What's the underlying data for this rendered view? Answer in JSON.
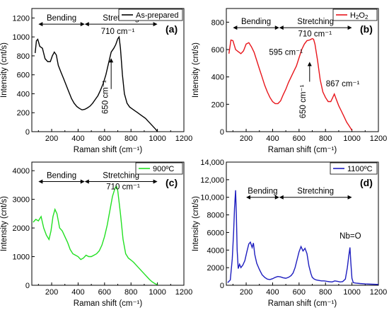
{
  "chart_data": [
    {
      "id": "a",
      "type": "line",
      "panel_label": "(a)",
      "legend": "As-prepared",
      "color": "#000000",
      "xlabel": "Raman shift (cm⁻¹)",
      "ylabel": "Intensity (cnt/s)",
      "xlim": [
        50,
        1200
      ],
      "ylim": [
        0,
        1300
      ],
      "xticks": [
        200,
        400,
        600,
        800,
        1000,
        1200
      ],
      "yticks": [
        0,
        200,
        400,
        600,
        800,
        1000,
        1200
      ],
      "ytick_labels": [
        "0",
        "200",
        "400",
        "600",
        "800",
        "1000",
        "1200"
      ],
      "bending": {
        "label": "Bending",
        "from": 100,
        "to": 450,
        "y": 1135
      },
      "stretching": {
        "label": "Stretching",
        "from": 450,
        "to": 1000,
        "y": 1135
      },
      "annotations": [
        {
          "text": "710 cm⁻¹",
          "x": 700,
          "y": 1030
        },
        {
          "text": "650 cm⁻¹",
          "x": 625,
          "y": 365,
          "rotate": true
        }
      ],
      "arrows": [
        {
          "x": 650,
          "y_from": 450,
          "y_to": 775
        }
      ],
      "x": [
        75,
        85,
        95,
        110,
        130,
        150,
        170,
        190,
        205,
        220,
        235,
        250,
        270,
        290,
        310,
        330,
        350,
        370,
        390,
        410,
        430,
        450,
        470,
        490,
        510,
        530,
        550,
        570,
        590,
        610,
        630,
        650,
        670,
        685,
        700,
        710,
        720,
        735,
        750,
        770,
        790,
        810,
        830,
        850,
        870,
        890,
        910,
        930,
        950,
        970,
        990,
        1000
      ],
      "y": [
        830,
        960,
        975,
        900,
        880,
        770,
        740,
        740,
        800,
        840,
        810,
        700,
        630,
        560,
        490,
        420,
        350,
        300,
        265,
        245,
        230,
        235,
        250,
        270,
        300,
        340,
        380,
        440,
        510,
        600,
        720,
        840,
        880,
        920,
        980,
        1000,
        880,
        600,
        400,
        300,
        260,
        240,
        220,
        200,
        180,
        160,
        140,
        110,
        80,
        50,
        20,
        0
      ]
    },
    {
      "id": "b",
      "type": "line",
      "panel_label": "(b)",
      "legend_main": "H",
      "legend_sub1": "2",
      "legend_mid": "O",
      "legend_sub2": "2",
      "color": "#e8151b",
      "xlabel": "Raman shift (cm⁻¹)",
      "ylabel": "Intensity (cnt/s)",
      "xlim": [
        50,
        1200
      ],
      "ylim": [
        0,
        900
      ],
      "xticks": [
        200,
        400,
        600,
        800,
        1000,
        1200
      ],
      "yticks": [
        0,
        200,
        400,
        600,
        800
      ],
      "ytick_labels": [
        "0",
        "200",
        "400",
        "600",
        "800"
      ],
      "bending": {
        "label": "Bending",
        "from": 100,
        "to": 450,
        "y": 760
      },
      "stretching": {
        "label": "Stretching",
        "from": 450,
        "to": 1000,
        "y": 760
      },
      "annotations": [
        {
          "text": "710 cm⁻¹",
          "x": 720,
          "y": 695
        },
        {
          "text": "595 cm⁻¹",
          "x": 500,
          "y": 560
        },
        {
          "text": "867 cm⁻¹",
          "x": 930,
          "y": 330
        },
        {
          "text": "650 cm⁻¹",
          "x": 648,
          "y": 220,
          "rotate": true
        }
      ],
      "arrows": [
        {
          "x": 680,
          "y_from": 365,
          "y_to": 510
        }
      ],
      "x": [
        70,
        85,
        100,
        120,
        140,
        160,
        180,
        200,
        220,
        240,
        260,
        280,
        300,
        320,
        340,
        360,
        380,
        400,
        420,
        440,
        460,
        480,
        500,
        520,
        540,
        560,
        580,
        600,
        620,
        640,
        660,
        680,
        700,
        710,
        720,
        740,
        760,
        780,
        800,
        820,
        840,
        855,
        867,
        880,
        900,
        920,
        940,
        960,
        980,
        1000
      ],
      "y": [
        570,
        670,
        665,
        600,
        585,
        570,
        590,
        640,
        650,
        620,
        580,
        520,
        460,
        400,
        340,
        290,
        250,
        220,
        205,
        205,
        225,
        270,
        310,
        360,
        400,
        440,
        480,
        540,
        600,
        640,
        665,
        670,
        680,
        675,
        640,
        520,
        380,
        290,
        250,
        220,
        220,
        250,
        275,
        240,
        190,
        150,
        110,
        70,
        40,
        10
      ]
    },
    {
      "id": "c",
      "type": "line",
      "panel_label": "(c)",
      "legend": "900ºC",
      "color": "#22e022",
      "xlabel": "Raman shift (cm⁻¹)",
      "ylabel": "Intensity (cnt/s)",
      "xlim": [
        50,
        1200
      ],
      "ylim": [
        0,
        4300
      ],
      "xticks": [
        200,
        400,
        600,
        800,
        1000,
        1200
      ],
      "yticks": [
        0,
        1000,
        2000,
        3000,
        4000
      ],
      "ytick_labels": [
        "0",
        "1000",
        "2000",
        "3000",
        "4000"
      ],
      "bending": {
        "label": "Bending",
        "from": 100,
        "to": 450,
        "y": 3620
      },
      "stretching": {
        "label": "Stretching",
        "from": 450,
        "to": 1000,
        "y": 3620
      },
      "annotations": [
        {
          "text": "710 cm⁻¹",
          "x": 740,
          "y": 3350
        }
      ],
      "arrows": [],
      "x": [
        60,
        80,
        100,
        120,
        140,
        160,
        180,
        195,
        210,
        225,
        240,
        260,
        280,
        300,
        320,
        340,
        360,
        380,
        400,
        420,
        440,
        460,
        480,
        500,
        520,
        540,
        560,
        580,
        600,
        620,
        640,
        660,
        680,
        690,
        700,
        720,
        740,
        760,
        780,
        800,
        820,
        840,
        860,
        880,
        900,
        920,
        940,
        960,
        980,
        1000
      ],
      "y": [
        2200,
        2300,
        2250,
        2400,
        2000,
        1750,
        1600,
        1900,
        2400,
        2650,
        2500,
        2000,
        1900,
        1700,
        1500,
        1250,
        1100,
        1050,
        1000,
        900,
        950,
        1050,
        1000,
        1000,
        1050,
        1100,
        1200,
        1400,
        1700,
        2100,
        2600,
        3100,
        3400,
        3450,
        3300,
        2500,
        1600,
        1100,
        950,
        880,
        800,
        700,
        600,
        500,
        400,
        300,
        200,
        120,
        60,
        20
      ]
    },
    {
      "id": "d",
      "type": "line",
      "panel_label": "(d)",
      "legend": "1100ºC",
      "color": "#1d1dbf",
      "xlabel": "Raman shift (cm⁻¹)",
      "ylabel": "Intensity (cnt/s)",
      "xlim": [
        50,
        1200
      ],
      "ylim": [
        0,
        14000
      ],
      "xticks": [
        200,
        400,
        600,
        800,
        1000,
        1200
      ],
      "yticks": [
        0,
        2000,
        4000,
        6000,
        8000,
        10000,
        12000,
        14000
      ],
      "ytick_labels": [
        "0",
        "2000",
        "4000",
        "6000",
        "8000",
        "10,000",
        "12,000",
        "14,000"
      ],
      "bending": {
        "label": "Bending",
        "from": 200,
        "to": 450,
        "y": 10000
      },
      "stretching": {
        "label": "Stretching",
        "from": 450,
        "to": 1000,
        "y": 10000
      },
      "annotations": [
        {
          "text": "Nb=O",
          "x": 988,
          "y": 5300
        }
      ],
      "arrows": [],
      "x": [
        60,
        80,
        95,
        105,
        112,
        120,
        126,
        132,
        140,
        150,
        160,
        175,
        190,
        205,
        220,
        232,
        245,
        255,
        265,
        280,
        300,
        320,
        340,
        360,
        380,
        400,
        420,
        440,
        460,
        480,
        500,
        520,
        540,
        555,
        570,
        585,
        600,
        615,
        630,
        645,
        660,
        675,
        690,
        700,
        715,
        730,
        750,
        770,
        790,
        810,
        830,
        850,
        870,
        890,
        910,
        930,
        950,
        965,
        975,
        985,
        992,
        1000,
        1010,
        1030,
        1060,
        1100,
        1150,
        1200
      ],
      "y": [
        300,
        600,
        3000,
        6000,
        8800,
        10800,
        8000,
        4000,
        1900,
        2400,
        2000,
        2300,
        2800,
        3800,
        4700,
        4900,
        4300,
        4800,
        3500,
        2500,
        1800,
        1200,
        900,
        700,
        650,
        750,
        900,
        1000,
        950,
        850,
        800,
        900,
        1100,
        1400,
        2000,
        2900,
        3800,
        4400,
        3900,
        4200,
        3600,
        2200,
        1300,
        900,
        700,
        600,
        550,
        500,
        500,
        450,
        400,
        380,
        500,
        450,
        380,
        420,
        700,
        2000,
        3200,
        4300,
        2500,
        800,
        300,
        250,
        200,
        150,
        120,
        100
      ]
    }
  ]
}
